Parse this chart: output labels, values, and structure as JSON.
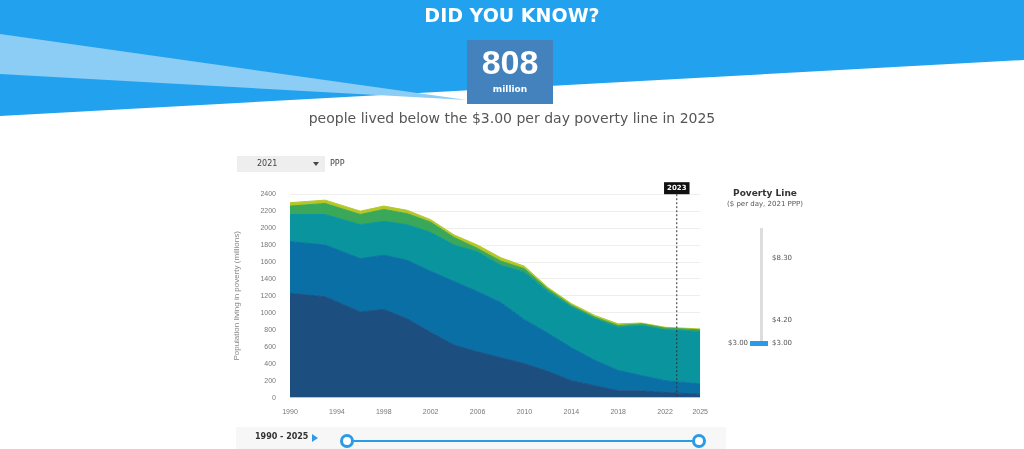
{
  "chart_data": {
    "type": "area",
    "stacked": true,
    "title": "DID YOU KNOW?",
    "subtitle": "people lived below the $3.00 per day poverty line in 2025",
    "ylabel": "Population living in poverty (millions)",
    "annotations": [
      "808",
      "million",
      "2021",
      "PPP",
      "Poverty Line",
      "($ per day, 2021 PPP)",
      "$8.30",
      "$4.20",
      "$3.00",
      "$3.00",
      "1990 - 2025"
    ],
    "x": [
      1990,
      1993,
      1996,
      1998,
      2000,
      2002,
      2004,
      2006,
      2008,
      2010,
      2012,
      2014,
      2016,
      2018,
      2020,
      2022,
      2025
    ],
    "series": [
      {
        "color": "#1c4f80",
        "values": [
          1230,
          1190,
          1010,
          1040,
          930,
          770,
          620,
          540,
          470,
          400,
          310,
          200,
          140,
          80,
          80,
          60,
          40
        ]
      },
      {
        "color": "#0a6fa5",
        "values": [
          610,
          610,
          630,
          640,
          690,
          720,
          750,
          710,
          650,
          520,
          450,
          390,
          300,
          240,
          180,
          140,
          120
        ]
      },
      {
        "color": "#0a949e",
        "values": [
          320,
          360,
          400,
          400,
          420,
          460,
          430,
          470,
          440,
          560,
          490,
          480,
          490,
          510,
          590,
          600,
          620
        ]
      },
      {
        "color": "#3aa85a",
        "values": [
          100,
          130,
          120,
          140,
          130,
          120,
          90,
          40,
          50,
          40,
          30,
          20,
          20,
          20,
          20,
          20,
          20
        ]
      },
      {
        "color": "#b5c727",
        "values": [
          40,
          40,
          40,
          40,
          40,
          30,
          30,
          40,
          40,
          30,
          20,
          20,
          20,
          20,
          10,
          10,
          10
        ]
      }
    ],
    "xlim": [
      1990,
      2025
    ],
    "xticks": [
      1990,
      1994,
      1998,
      2002,
      2006,
      2010,
      2014,
      2018,
      2022,
      2025
    ],
    "ylim": [
      0,
      2400
    ],
    "yticks": [
      0,
      200,
      400,
      600,
      800,
      1000,
      1200,
      1400,
      1600,
      1800,
      2000,
      2200,
      2400
    ],
    "ref_lines": [
      {
        "axis": "x",
        "value": 2023,
        "label": "2023",
        "line_style": "dotted",
        "color": "#333333"
      }
    ],
    "grid": "y",
    "legend": false,
    "marker": "none"
  }
}
